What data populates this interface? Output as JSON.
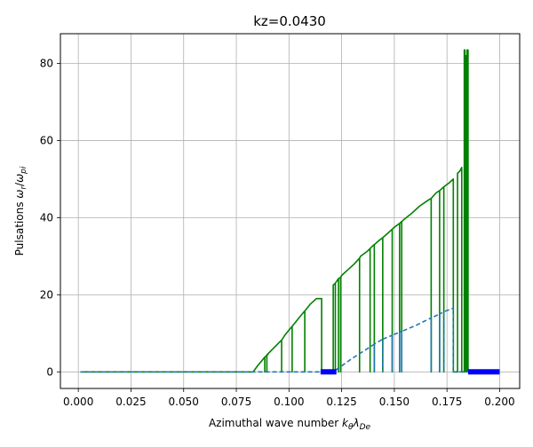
{
  "chart_data": {
    "type": "line",
    "title": "kz=0.0430",
    "xlabel_text": "Azimuthal wave number ",
    "xlabel_math": {
      "base": "k",
      "sub1": "θ",
      "mid": "λ",
      "sub2": "De"
    },
    "ylabel_text": "Pulsations ",
    "ylabel_math": {
      "base": "ω",
      "sub1": "r",
      "sep": "/",
      "base2": "ω",
      "sub2": "pi"
    },
    "xlim": [
      -0.0085,
      0.2095
    ],
    "ylim": [
      -4.3,
      87.7
    ],
    "xticks": [
      0.0,
      0.025,
      0.05,
      0.075,
      0.1,
      0.125,
      0.15,
      0.175,
      0.2
    ],
    "xtick_labels": [
      "0.000",
      "0.025",
      "0.050",
      "0.075",
      "0.100",
      "0.125",
      "0.150",
      "0.175",
      "0.200"
    ],
    "yticks": [
      0,
      20,
      40,
      60,
      80
    ],
    "ytick_labels": [
      "0",
      "20",
      "40",
      "60",
      "80"
    ],
    "grid": true,
    "colors": {
      "real_part": "#008000",
      "imag_part": "#1f77b4",
      "unstable": "#0000ff",
      "grid": "#b0b0b0"
    },
    "series": [
      {
        "style": "solid",
        "color": "#008000",
        "x": [
          0.001,
          0.083,
          0.085,
          0.088,
          0.0885,
          0.0885,
          0.0885,
          0.09,
          0.0895,
          0.0895,
          0.0895,
          0.096,
          0.0965,
          0.0965,
          0.0965,
          0.098,
          0.101,
          0.1015,
          0.1015,
          0.1015,
          0.104,
          0.107,
          0.1075,
          0.1075,
          0.1075,
          0.11,
          0.113,
          0.1155,
          0.1155,
          0.1155,
          0.1165,
          0.121,
          0.121,
          0.122,
          0.122,
          0.122,
          0.123,
          0.1235,
          0.1235,
          0.1235,
          0.1245,
          0.1245,
          0.1245,
          0.125,
          0.128,
          0.131,
          0.1335,
          0.1335,
          0.1335,
          0.134,
          0.137,
          0.1385,
          0.1385,
          0.1385,
          0.14,
          0.1405,
          0.1405,
          0.1405,
          0.143,
          0.1445,
          0.1445,
          0.1445,
          0.147,
          0.149,
          0.149,
          0.149,
          0.15,
          0.1525,
          0.1525,
          0.1525,
          0.1535,
          0.1535,
          0.1535,
          0.154,
          0.1545,
          0.158,
          0.162,
          0.166,
          0.1675,
          0.1675,
          0.1675,
          0.17,
          0.1715,
          0.1715,
          0.1715,
          0.1725,
          0.1735,
          0.1735,
          0.1735,
          0.176,
          0.178,
          0.178,
          0.18,
          0.18,
          0.181,
          0.182,
          0.182,
          0.1832,
          0.1832,
          0.1835,
          0.1838,
          0.1838,
          0.1842,
          0.1842,
          0.1845,
          0.1845,
          0.185,
          0.185
        ],
        "y": [
          0,
          0,
          1.5,
          3.5,
          3.8,
          0,
          3.8,
          4.5,
          4.4,
          0,
          4.4,
          8,
          8.2,
          0,
          8.2,
          9.5,
          11.5,
          11.8,
          0,
          11.8,
          13.5,
          15.5,
          15.8,
          0,
          15.8,
          17.5,
          19,
          19,
          0,
          0,
          0,
          0,
          22.5,
          23,
          0,
          23,
          23.8,
          24.2,
          0,
          24.2,
          24.5,
          0,
          24.5,
          25,
          26.5,
          28,
          29.5,
          0,
          29.5,
          30,
          31.2,
          32,
          0,
          32,
          32.8,
          33,
          0,
          33,
          34.2,
          34.8,
          0,
          34.8,
          36,
          37,
          0,
          37,
          37.5,
          38.5,
          0,
          38.5,
          39,
          0,
          39,
          39.2,
          39.5,
          41,
          43,
          44.5,
          45,
          0,
          45,
          46.5,
          47,
          0,
          47,
          47.5,
          48,
          0,
          48,
          49,
          50,
          0,
          0,
          51.5,
          52,
          53,
          0,
          0,
          83.5,
          83.5,
          0,
          82,
          82,
          0,
          83.5,
          0,
          83.5,
          0
        ]
      },
      {
        "style": "dashed",
        "color": "#1f77b4",
        "x": [
          0.001,
          0.121,
          0.121,
          0.13,
          0.14,
          0.1405,
          0.1405,
          0.1405,
          0.1445,
          0.1445,
          0.1445,
          0.149,
          0.149,
          0.149,
          0.1525,
          0.1525,
          0.1525,
          0.1535,
          0.1535,
          0.1535,
          0.16,
          0.1675,
          0.1675,
          0.1675,
          0.1715,
          0.1715,
          0.1715,
          0.1735,
          0.1735,
          0.1735,
          0.178,
          0.178,
          0.2
        ],
        "y": [
          0,
          0,
          0,
          3.5,
          7,
          7.2,
          0,
          7.2,
          8.5,
          0,
          8.5,
          9.5,
          0,
          9.5,
          10.3,
          0,
          10.3,
          10.5,
          0,
          10.5,
          12,
          14,
          0,
          14,
          15,
          0,
          15,
          15.6,
          0,
          15.6,
          16.5,
          0,
          0
        ]
      },
      {
        "style": "thick-markers",
        "color": "#0000ff",
        "segments": [
          [
            0.115,
            0.1225
          ],
          [
            0.185,
            0.2
          ]
        ],
        "y": 0
      }
    ]
  }
}
